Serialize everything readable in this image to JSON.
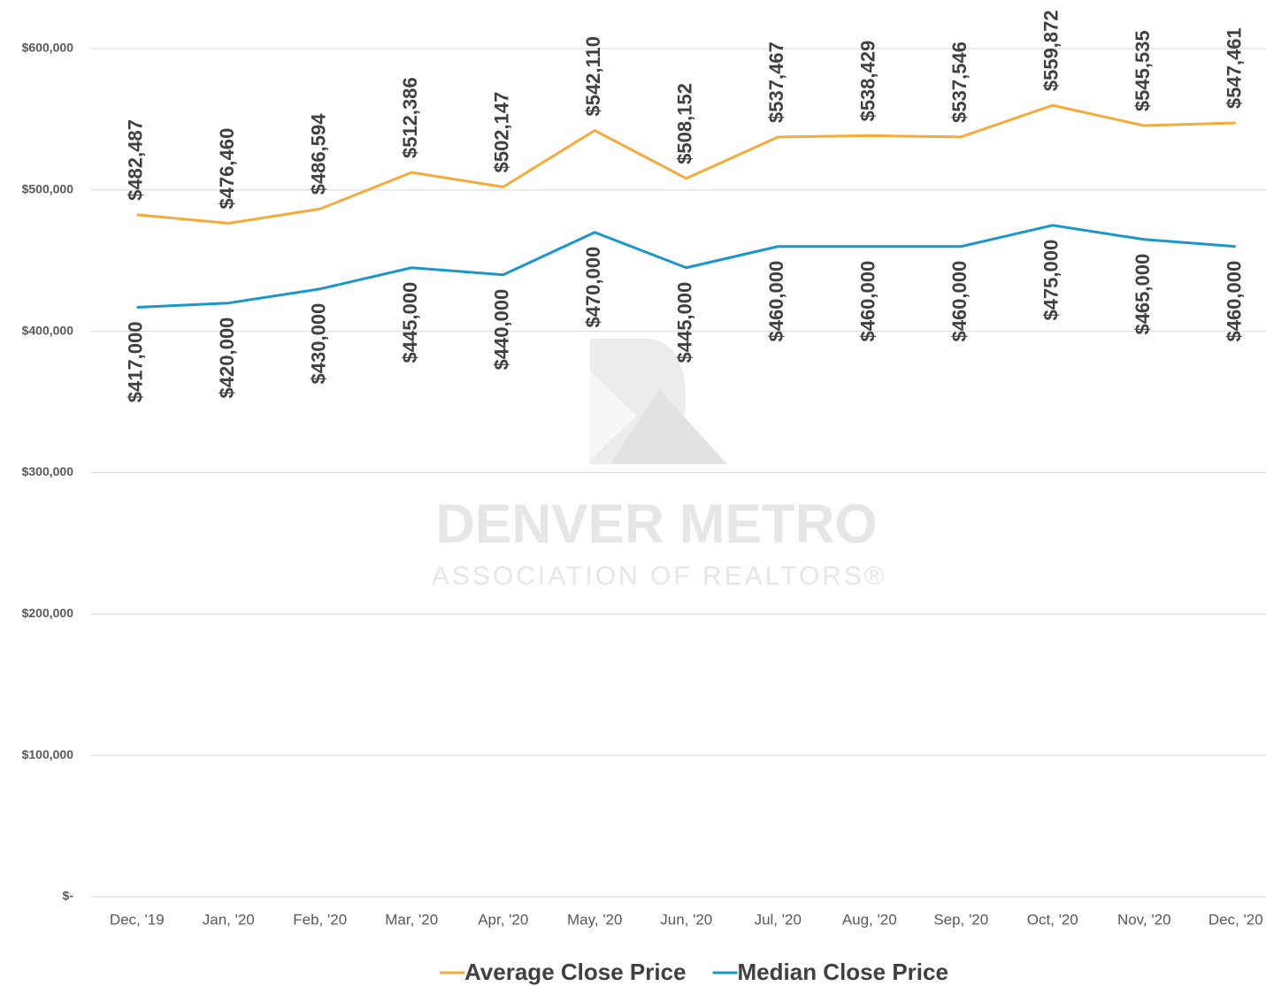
{
  "chart_data": {
    "type": "line",
    "categories": [
      "Dec, '19",
      "Jan, '20",
      "Feb, '20",
      "Mar, '20",
      "Apr, '20",
      "May, '20",
      "Jun, '20",
      "Jul, '20",
      "Aug, '20",
      "Sep, '20",
      "Oct, '20",
      "Nov, '20",
      "Dec, '20"
    ],
    "series": [
      {
        "name": "Average Close Price",
        "color": "#f4ab3c",
        "values": [
          482487,
          476460,
          486594,
          512386,
          502147,
          542110,
          508152,
          537467,
          538429,
          537546,
          559872,
          545535,
          547461
        ],
        "value_labels": [
          "$482,487",
          "$476,460",
          "$486,594",
          "$512,386",
          "$502,147",
          "$542,110",
          "$508,152",
          "$537,467",
          "$538,429",
          "$537,546",
          "$559,872",
          "$545,535",
          "$547,461"
        ]
      },
      {
        "name": "Median Close Price",
        "color": "#1b96c8",
        "values": [
          417000,
          420000,
          430000,
          445000,
          440000,
          470000,
          445000,
          460000,
          460000,
          460000,
          475000,
          465000,
          460000
        ],
        "value_labels": [
          "$417,000",
          "$420,000",
          "$430,000",
          "$445,000",
          "$440,000",
          "$470,000",
          "$445,000",
          "$460,000",
          "$460,000",
          "$460,000",
          "$475,000",
          "$465,000",
          "$460,000"
        ]
      }
    ],
    "ylim": [
      0,
      600000
    ],
    "yticks": [
      {
        "value": 0,
        "label": "$-"
      },
      {
        "value": 100000,
        "label": "$100,000"
      },
      {
        "value": 200000,
        "label": "$200,000"
      },
      {
        "value": 300000,
        "label": "$300,000"
      },
      {
        "value": 400000,
        "label": "$400,000"
      },
      {
        "value": 500000,
        "label": "$500,000"
      },
      {
        "value": 600000,
        "label": "$600,000"
      }
    ],
    "grid": true,
    "legend": "bottom",
    "watermark": [
      "DENVER METRO",
      "ASSOCIATION OF REALTORS®"
    ]
  }
}
